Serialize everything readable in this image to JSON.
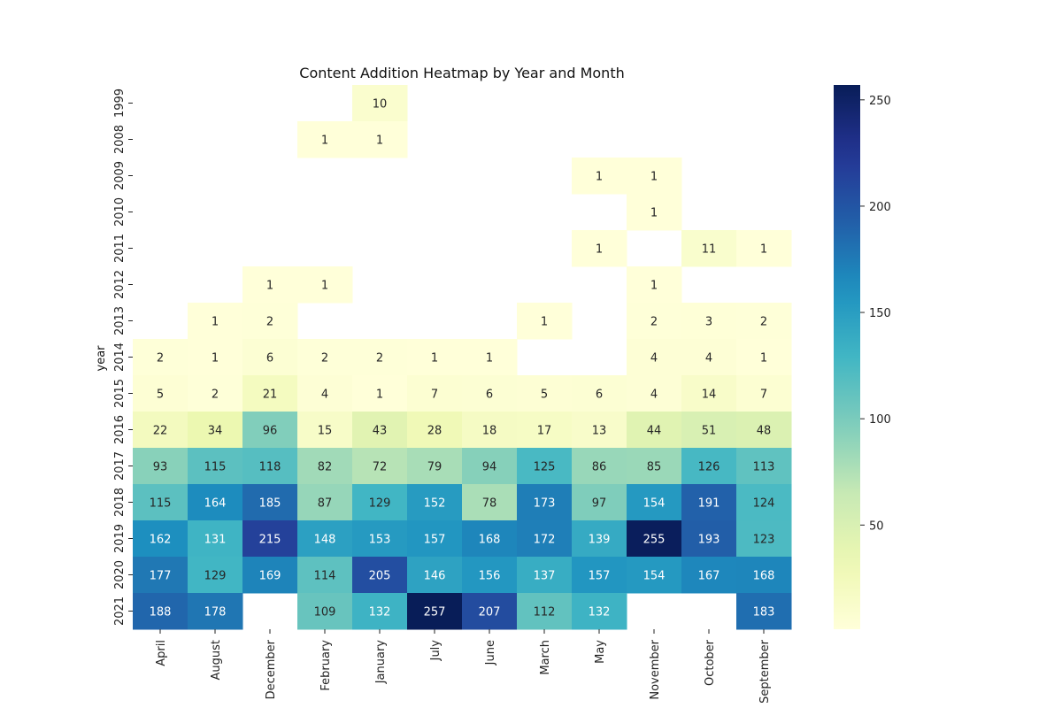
{
  "chart_data": {
    "type": "heatmap",
    "title": "Content Addition Heatmap by Year and Month",
    "xlabel": "",
    "ylabel": "year",
    "x_categories": [
      "April",
      "August",
      "December",
      "February",
      "January",
      "July",
      "June",
      "March",
      "May",
      "November",
      "October",
      "September"
    ],
    "y_categories": [
      "1999",
      "2008",
      "2009",
      "2010",
      "2011",
      "2012",
      "2013",
      "2014",
      "2015",
      "2016",
      "2017",
      "2018",
      "2019",
      "2020",
      "2021"
    ],
    "values": [
      [
        null,
        null,
        null,
        null,
        10,
        null,
        null,
        null,
        null,
        null,
        null,
        null
      ],
      [
        null,
        null,
        null,
        1,
        1,
        null,
        null,
        null,
        null,
        null,
        null,
        null
      ],
      [
        null,
        null,
        null,
        null,
        null,
        null,
        null,
        null,
        1,
        1,
        null,
        null
      ],
      [
        null,
        null,
        null,
        null,
        null,
        null,
        null,
        null,
        null,
        1,
        null,
        null
      ],
      [
        null,
        null,
        null,
        null,
        null,
        null,
        null,
        null,
        1,
        null,
        11,
        1
      ],
      [
        null,
        null,
        1,
        1,
        null,
        null,
        null,
        null,
        null,
        1,
        null,
        null
      ],
      [
        null,
        1,
        2,
        null,
        null,
        null,
        null,
        1,
        null,
        2,
        3,
        2
      ],
      [
        2,
        1,
        6,
        2,
        2,
        1,
        1,
        null,
        null,
        4,
        4,
        1
      ],
      [
        5,
        2,
        21,
        4,
        1,
        7,
        6,
        5,
        6,
        4,
        14,
        7
      ],
      [
        22,
        34,
        96,
        15,
        43,
        28,
        18,
        17,
        13,
        44,
        51,
        48
      ],
      [
        93,
        115,
        118,
        82,
        72,
        79,
        94,
        125,
        86,
        85,
        126,
        113
      ],
      [
        115,
        164,
        185,
        87,
        129,
        152,
        78,
        173,
        97,
        154,
        191,
        124
      ],
      [
        162,
        131,
        215,
        148,
        153,
        157,
        168,
        172,
        139,
        255,
        193,
        123
      ],
      [
        177,
        129,
        169,
        114,
        205,
        146,
        156,
        137,
        157,
        154,
        167,
        168
      ],
      [
        188,
        178,
        null,
        109,
        132,
        257,
        207,
        112,
        132,
        null,
        null,
        183
      ]
    ],
    "colorbar": {
      "colormap": "YlGnBu",
      "min": 1,
      "max": 257,
      "ticks": [
        50,
        100,
        150,
        200,
        250
      ]
    }
  }
}
